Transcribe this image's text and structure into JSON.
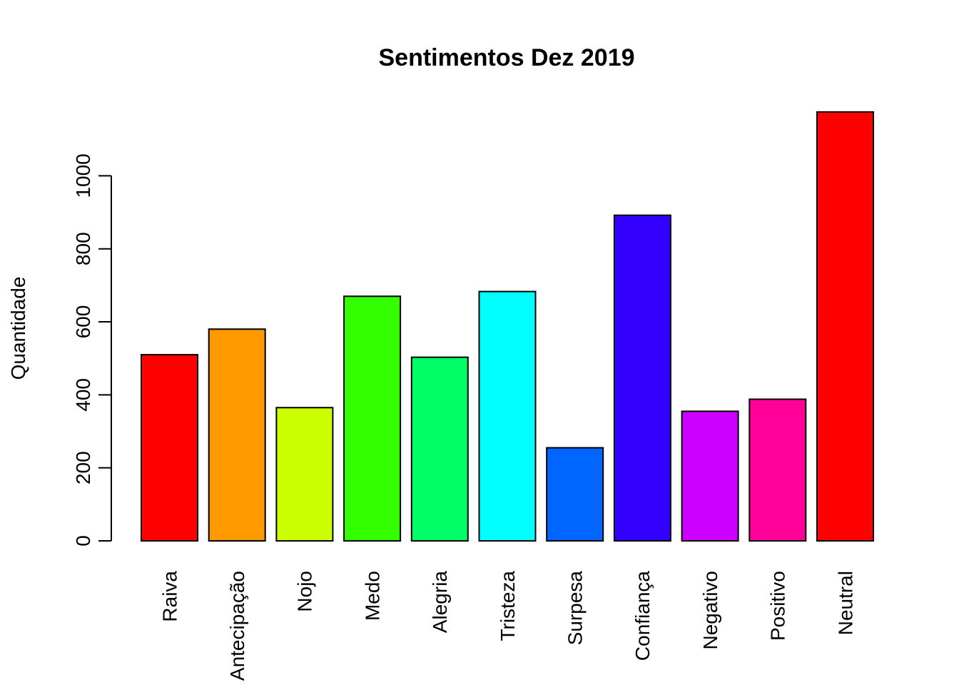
{
  "chart_data": {
    "type": "bar",
    "title": "Sentimentos Dez 2019",
    "xlabel": "",
    "ylabel": "Quantidade",
    "categories": [
      "Raiva",
      "Antecipação",
      "Nojo",
      "Medo",
      "Alegria",
      "Tristeza",
      "Surpesa",
      "Confiança",
      "Negativo",
      "Positivo",
      "Neutral"
    ],
    "values": [
      510,
      580,
      365,
      670,
      503,
      683,
      255,
      892,
      355,
      388,
      1175
    ],
    "colors": [
      "#FF0000",
      "#FF9900",
      "#CCFF00",
      "#33FF00",
      "#00FF66",
      "#00FFFF",
      "#0066FF",
      "#3300FF",
      "#CC00FF",
      "#FF0099",
      "#FF0000"
    ],
    "yticks": [
      0,
      200,
      400,
      600,
      800,
      1000
    ],
    "ylim": [
      0,
      1175
    ],
    "grid": false,
    "legend": "none"
  }
}
